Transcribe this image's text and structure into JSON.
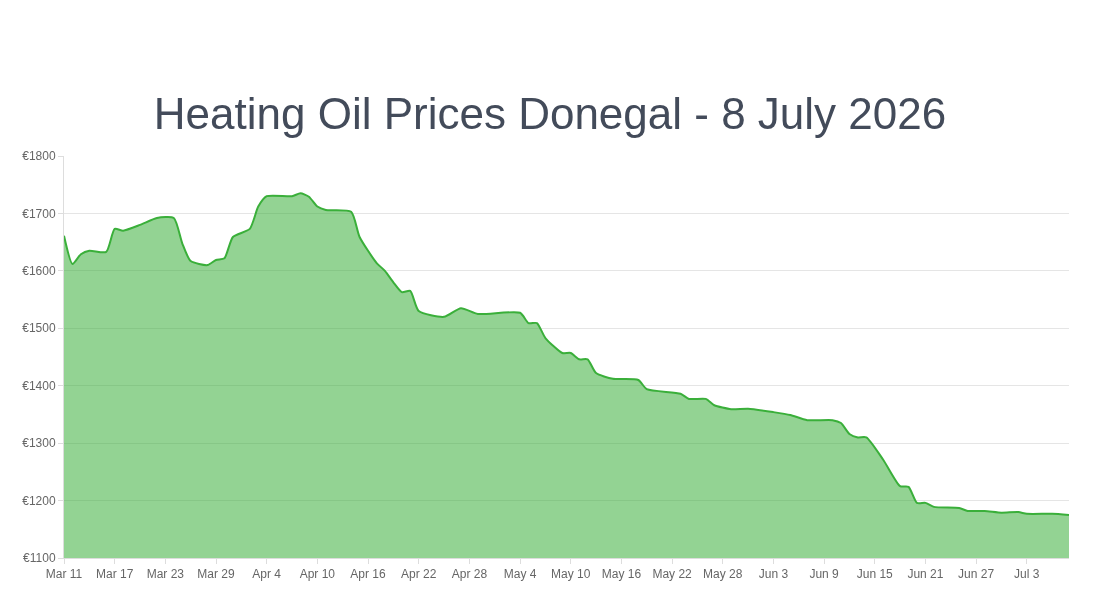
{
  "chart_data": {
    "type": "area",
    "title": "Heating Oil Prices Donegal - 8 July 2026",
    "x": [
      "2026-03-11",
      "2026-03-12",
      "2026-03-13",
      "2026-03-14",
      "2026-03-16",
      "2026-03-17",
      "2026-03-18",
      "2026-03-20",
      "2026-03-22",
      "2026-03-24",
      "2026-03-25",
      "2026-03-26",
      "2026-03-28",
      "2026-03-29",
      "2026-03-30",
      "2026-03-31",
      "2026-04-02",
      "2026-04-03",
      "2026-04-04",
      "2026-04-07",
      "2026-04-08",
      "2026-04-09",
      "2026-04-10",
      "2026-04-11",
      "2026-04-14",
      "2026-04-15",
      "2026-04-17",
      "2026-04-18",
      "2026-04-19",
      "2026-04-20",
      "2026-04-21",
      "2026-04-22",
      "2026-04-25",
      "2026-04-27",
      "2026-04-29",
      "2026-05-04",
      "2026-05-05",
      "2026-05-06",
      "2026-05-07",
      "2026-05-09",
      "2026-05-10",
      "2026-05-11",
      "2026-05-12",
      "2026-05-13",
      "2026-05-15",
      "2026-05-18",
      "2026-05-19",
      "2026-05-23",
      "2026-05-24",
      "2026-05-26",
      "2026-05-27",
      "2026-05-29",
      "2026-05-31",
      "2026-06-03",
      "2026-06-05",
      "2026-06-07",
      "2026-06-10",
      "2026-06-11",
      "2026-06-12",
      "2026-06-13",
      "2026-06-14",
      "2026-06-16",
      "2026-06-18",
      "2026-06-19",
      "2026-06-20",
      "2026-06-21",
      "2026-06-22",
      "2026-06-25",
      "2026-06-26",
      "2026-06-28",
      "2026-06-30",
      "2026-07-02",
      "2026-07-03",
      "2026-07-06",
      "2026-07-08"
    ],
    "series": [
      {
        "color": "#3aaf3a",
        "values": [
          1661,
          1612,
          1629,
          1635,
          1633,
          1673,
          1670,
          1680,
          1692,
          1692,
          1648,
          1617,
          1610,
          1619,
          1622,
          1659,
          1673,
          1712,
          1730,
          1730,
          1735,
          1729,
          1712,
          1706,
          1703,
          1659,
          1614,
          1600,
          1580,
          1563,
          1565,
          1530,
          1520,
          1535,
          1525,
          1527,
          1509,
          1509,
          1483,
          1457,
          1457,
          1446,
          1446,
          1422,
          1412,
          1410,
          1394,
          1386,
          1377,
          1377,
          1366,
          1359,
          1360,
          1354,
          1349,
          1340,
          1340,
          1335,
          1316,
          1310,
          1310,
          1271,
          1225,
          1224,
          1196,
          1196,
          1189,
          1187,
          1182,
          1182,
          1179,
          1180,
          1177,
          1177,
          1175
        ]
      }
    ],
    "xlim": [
      "2026-03-11",
      "2026-07-08"
    ],
    "xticks": [
      {
        "value": "2026-03-11",
        "label": "Mar 11"
      },
      {
        "value": "2026-03-17",
        "label": "Mar 17"
      },
      {
        "value": "2026-03-23",
        "label": "Mar 23"
      },
      {
        "value": "2026-03-29",
        "label": "Mar 29"
      },
      {
        "value": "2026-04-04",
        "label": "Apr 4"
      },
      {
        "value": "2026-04-10",
        "label": "Apr 10"
      },
      {
        "value": "2026-04-16",
        "label": "Apr 16"
      },
      {
        "value": "2026-04-22",
        "label": "Apr 22"
      },
      {
        "value": "2026-04-28",
        "label": "Apr 28"
      },
      {
        "value": "2026-05-04",
        "label": "May 4"
      },
      {
        "value": "2026-05-10",
        "label": "May 10"
      },
      {
        "value": "2026-05-16",
        "label": "May 16"
      },
      {
        "value": "2026-05-22",
        "label": "May 22"
      },
      {
        "value": "2026-05-28",
        "label": "May 28"
      },
      {
        "value": "2026-06-03",
        "label": "Jun 3"
      },
      {
        "value": "2026-06-09",
        "label": "Jun 9"
      },
      {
        "value": "2026-06-15",
        "label": "Jun 15"
      },
      {
        "value": "2026-06-21",
        "label": "Jun 21"
      },
      {
        "value": "2026-06-27",
        "label": "Jun 27"
      },
      {
        "value": "2026-07-03",
        "label": "Jul 3"
      }
    ],
    "ylim": [
      1100,
      1800
    ],
    "yticks": [
      {
        "value": 1100,
        "label": "€1100"
      },
      {
        "value": 1200,
        "label": "€1200"
      },
      {
        "value": 1300,
        "label": "€1300"
      },
      {
        "value": 1400,
        "label": "€1400"
      },
      {
        "value": 1500,
        "label": "€1500"
      },
      {
        "value": 1600,
        "label": "€1600"
      },
      {
        "value": 1700,
        "label": "€1700"
      },
      {
        "value": 1800,
        "label": "€1800"
      }
    ],
    "grid": "y",
    "marker": "none",
    "line_style": "solid"
  }
}
